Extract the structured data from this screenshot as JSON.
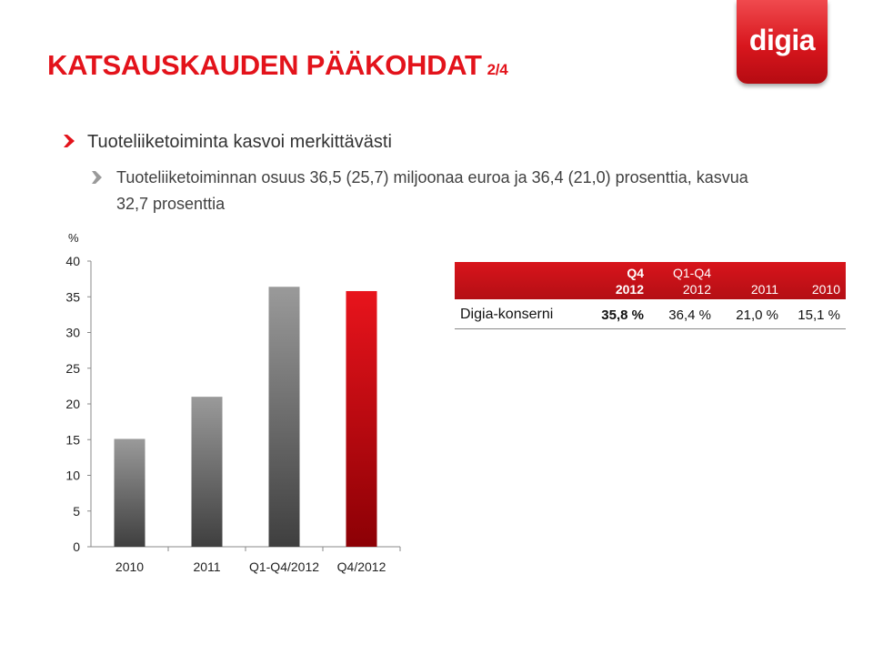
{
  "title": {
    "main": "KATSAUSKAUDEN PÄÄKOHDAT",
    "sub": "2/4"
  },
  "logo": {
    "text": "digia"
  },
  "bullets": {
    "level1": "Tuoteliiketoiminta kasvoi merkittävästi",
    "level2": "Tuoteliiketoiminnan osuus  36,5 (25,7) miljoonaa euroa ja 36,4 (21,0) prosenttia, kasvua 32,7 prosenttia"
  },
  "colors": {
    "accent": "#e3131b",
    "bar_gray": "#777777",
    "bar_red": "#cc0000"
  },
  "chart_data": {
    "type": "bar",
    "ylabel": "%",
    "ylim": [
      0,
      40
    ],
    "yticks": [
      0,
      5,
      10,
      15,
      20,
      25,
      30,
      35,
      40
    ],
    "categories": [
      "2010",
      "2011",
      "Q1-Q4/2012",
      "Q4/2012"
    ],
    "values": [
      15.1,
      21.0,
      36.4,
      35.8
    ],
    "bar_colors": [
      "gray",
      "gray",
      "gray",
      "red"
    ],
    "grid": false
  },
  "table": {
    "headers": [
      {
        "label": "",
        "lines": [
          "",
          ""
        ]
      },
      {
        "label": "Q4 2012",
        "lines": [
          "Q4",
          "2012"
        ]
      },
      {
        "label": "Q1-Q4 2012",
        "lines": [
          "Q1-Q4",
          "2012"
        ]
      },
      {
        "label": "2011",
        "lines": [
          "",
          "2011"
        ]
      },
      {
        "label": "2010",
        "lines": [
          "",
          "2010"
        ]
      }
    ],
    "rows": [
      {
        "label": "Digia-konserni",
        "cells": [
          "35,8 %",
          "36,4 %",
          "21,0 %",
          "15,1 %"
        ]
      }
    ]
  }
}
